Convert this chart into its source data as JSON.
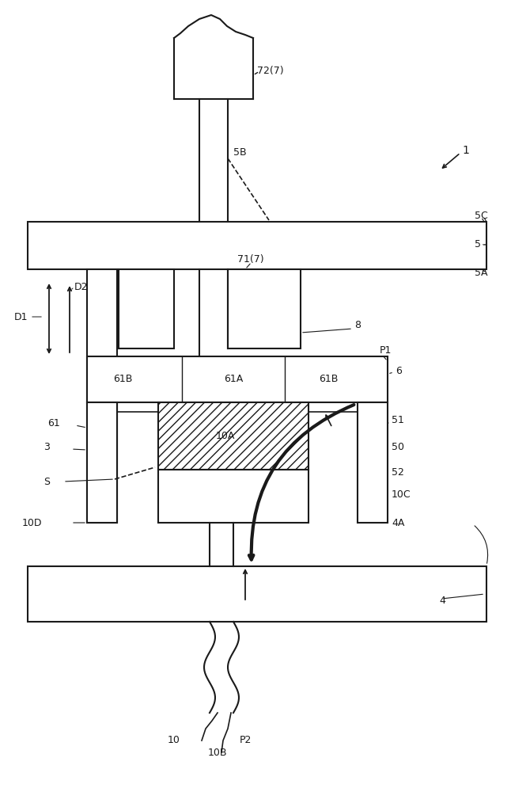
{
  "bg_color": "#ffffff",
  "line_color": "#1a1a1a",
  "label_color": "#1a1a1a",
  "fig_width": 6.46,
  "fig_height": 10.0,
  "labels": {
    "72_7": "72(7)",
    "1": "1",
    "5B": "5B",
    "5C": "5C",
    "5": "5",
    "5A": "5A",
    "D1": "D1",
    "D2": "D2",
    "71_7": "71(7)",
    "8": "8",
    "P1": "P1",
    "6": "6",
    "61B_left": "61B",
    "61A": "61A",
    "61B_right": "61B",
    "61": "61",
    "3": "3",
    "S": "S",
    "10A": "10A",
    "51": "51",
    "50": "50",
    "52": "52",
    "10C": "10C",
    "4A": "4A",
    "10D": "10D",
    "4": "4",
    "10": "10",
    "10B": "10B",
    "P2": "P2"
  }
}
